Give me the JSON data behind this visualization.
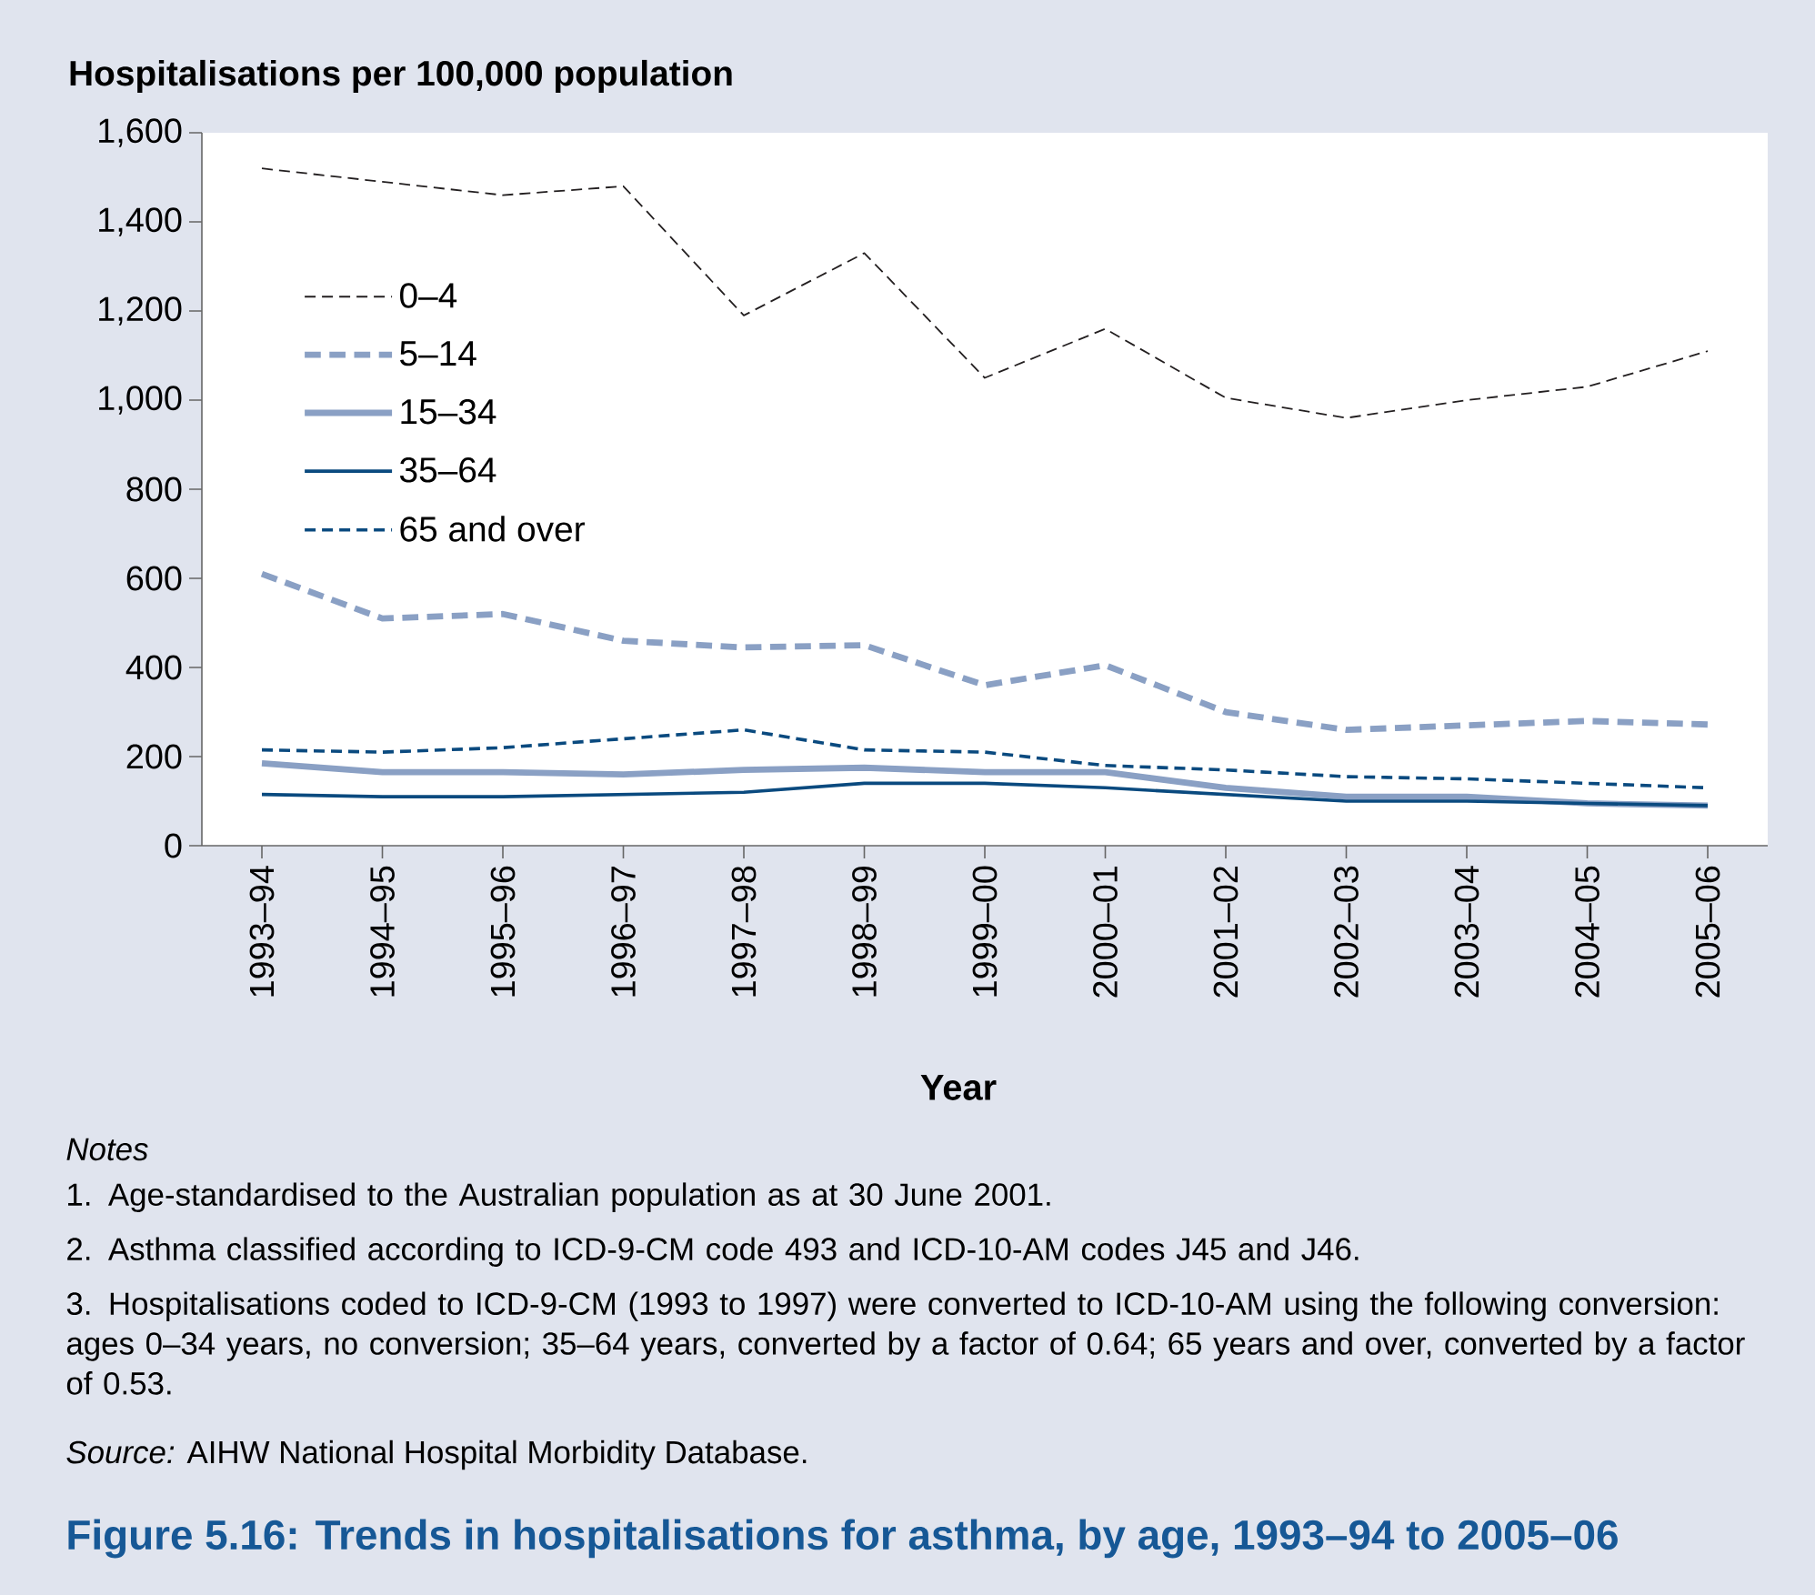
{
  "chart_data": {
    "type": "line",
    "title": "Figure 5.16: Trends in hospitalisations for asthma, by age, 1993–94 to 2005–06",
    "ylabel": "Hospitalisations per 100,000 population",
    "xlabel": "Year",
    "categories": [
      "1993–94",
      "1994–95",
      "1995–96",
      "1996–97",
      "1997–98",
      "1998–99",
      "1999–00",
      "2000–01",
      "2001–02",
      "2002–03",
      "2003–04",
      "2004–05",
      "2005–06"
    ],
    "series": [
      {
        "name": "0–4",
        "color": "#231f20",
        "line_style": "dashed",
        "values": [
          1520,
          1490,
          1460,
          1480,
          1190,
          1330,
          1050,
          1160,
          1005,
          960,
          1000,
          1030,
          1110
        ]
      },
      {
        "name": "5–14",
        "color": "#8aa0c4",
        "line_style": "dashed",
        "values": [
          610,
          510,
          520,
          460,
          445,
          450,
          360,
          405,
          300,
          260,
          270,
          280,
          272
        ]
      },
      {
        "name": "15–34",
        "color": "#8aa0c4",
        "line_style": "solid",
        "values": [
          185,
          165,
          165,
          160,
          170,
          175,
          165,
          165,
          130,
          110,
          110,
          95,
          90
        ]
      },
      {
        "name": "35–64",
        "color": "#0a4a7f",
        "line_style": "solid",
        "values": [
          115,
          110,
          110,
          115,
          120,
          140,
          140,
          130,
          115,
          100,
          100,
          95,
          90
        ]
      },
      {
        "name": "65 and over",
        "color": "#0a4a7f",
        "line_style": "dashed",
        "values": [
          215,
          210,
          220,
          240,
          260,
          215,
          210,
          180,
          170,
          155,
          150,
          140,
          130
        ]
      }
    ],
    "ylim": [
      0,
      1600
    ],
    "yticks": [
      0,
      200,
      400,
      600,
      800,
      {
        "value": 1000,
        "label": "1,000"
      },
      {
        "value": 1200,
        "label": "1,200"
      },
      {
        "value": 1400,
        "label": "1,400"
      },
      {
        "value": 1600,
        "label": "1,600"
      }
    ],
    "grid": false,
    "legend": "top left",
    "marker": "none",
    "annotations": [
      "Notes",
      "1. Age-standardised to the Australian population as at 30 June 2001.",
      "2. Asthma classified according to ICD-9-CM code 493 and ICD-10-AM codes J45 and J46.",
      "3. Hospitalisations coded to ICD-9-CM (1993 to 1997) were converted to ICD-10-AM using the following conversion: ages 0–34 years, no conversion; 35–64 years, converted by a factor of 0.64; 65 years and over, converted by a factor of 0.53.",
      "*Source:* AIHW National Hospital Morbidity Database."
    ]
  }
}
